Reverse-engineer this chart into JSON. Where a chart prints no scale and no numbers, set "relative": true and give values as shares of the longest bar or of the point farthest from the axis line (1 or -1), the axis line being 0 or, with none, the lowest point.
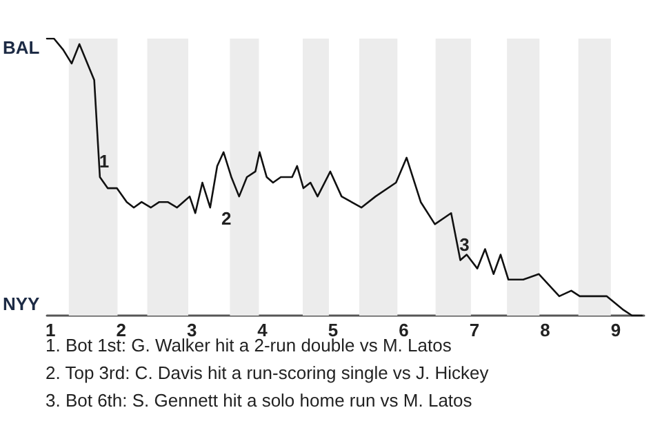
{
  "chart_data": {
    "type": "line",
    "relative": true,
    "x": [
      0.95,
      1.05,
      1.18,
      1.3,
      1.41,
      1.62,
      1.7,
      1.81,
      1.94,
      2.08,
      2.18,
      2.29,
      2.42,
      2.54,
      2.66,
      2.79,
      2.88,
      2.97,
      3.05,
      3.15,
      3.26,
      3.36,
      3.45,
      3.56,
      3.67,
      3.78,
      3.9,
      3.96,
      4.06,
      4.15,
      4.26,
      4.42,
      4.49,
      4.58,
      4.68,
      4.78,
      4.96,
      5.12,
      5.4,
      5.6,
      5.89,
      6.04,
      6.24,
      6.44,
      6.67,
      6.8,
      6.89,
      7.04,
      7.15,
      7.27,
      7.37,
      7.48,
      7.69,
      7.91,
      8.2,
      8.37,
      8.49,
      8.77,
      8.87,
      9.11,
      9.23,
      9.37
    ],
    "series": [
      {
        "color": "#111111",
        "values": [
          1,
          1,
          0.96,
          0.91,
          0.98,
          0.85,
          0.5,
          0.46,
          0.46,
          0.41,
          0.39,
          0.41,
          0.39,
          0.41,
          0.41,
          0.39,
          0.41,
          0.43,
          0.37,
          0.48,
          0.39,
          0.54,
          0.59,
          0.5,
          0.43,
          0.5,
          0.52,
          0.59,
          0.5,
          0.48,
          0.5,
          0.5,
          0.54,
          0.46,
          0.48,
          0.43,
          0.52,
          0.43,
          0.39,
          0.43,
          0.48,
          0.57,
          0.41,
          0.33,
          0.37,
          0.2,
          0.22,
          0.17,
          0.24,
          0.15,
          0.22,
          0.13,
          0.13,
          0.15,
          0.07,
          0.09,
          0.07,
          0.07,
          0.07,
          0.02,
          0,
          0
        ]
      }
    ],
    "xlim": [
      0.95,
      9.4
    ],
    "xticks": [
      1,
      2,
      3,
      4,
      5,
      6,
      7,
      8,
      9
    ],
    "marker": "none",
    "bands": [
      {
        "axis": "x",
        "from": 1.26,
        "to": 1.95,
        "color": "#ececec"
      },
      {
        "axis": "x",
        "from": 2.37,
        "to": 2.95,
        "color": "#ececec"
      },
      {
        "axis": "x",
        "from": 3.54,
        "to": 3.95,
        "color": "#ececec"
      },
      {
        "axis": "x",
        "from": 4.57,
        "to": 4.94,
        "color": "#ececec"
      },
      {
        "axis": "x",
        "from": 5.37,
        "to": 5.91,
        "color": "#ececec"
      },
      {
        "axis": "x",
        "from": 6.45,
        "to": 6.95,
        "color": "#ececec"
      },
      {
        "axis": "x",
        "from": 7.46,
        "to": 7.92,
        "color": "#ececec"
      },
      {
        "axis": "x",
        "from": 8.47,
        "to": 8.93,
        "color": "#ececec"
      }
    ],
    "annotations": [
      {
        "text": "1",
        "x": 1.7,
        "y": 0.5
      },
      {
        "text": "2",
        "x": 3.36,
        "y": 0.39
      },
      {
        "text": "3",
        "x": 6.8,
        "y": 0.2
      },
      "BAL",
      "NYY",
      "1. Bot 1st: G. Walker hit a 2-run double vs M. Latos",
      "2. Top 3rd: C. Davis hit a run-scoring single vs J. Hickey",
      "3. Bot 6th: S. Gennett hit a solo home run vs M. Latos"
    ]
  }
}
